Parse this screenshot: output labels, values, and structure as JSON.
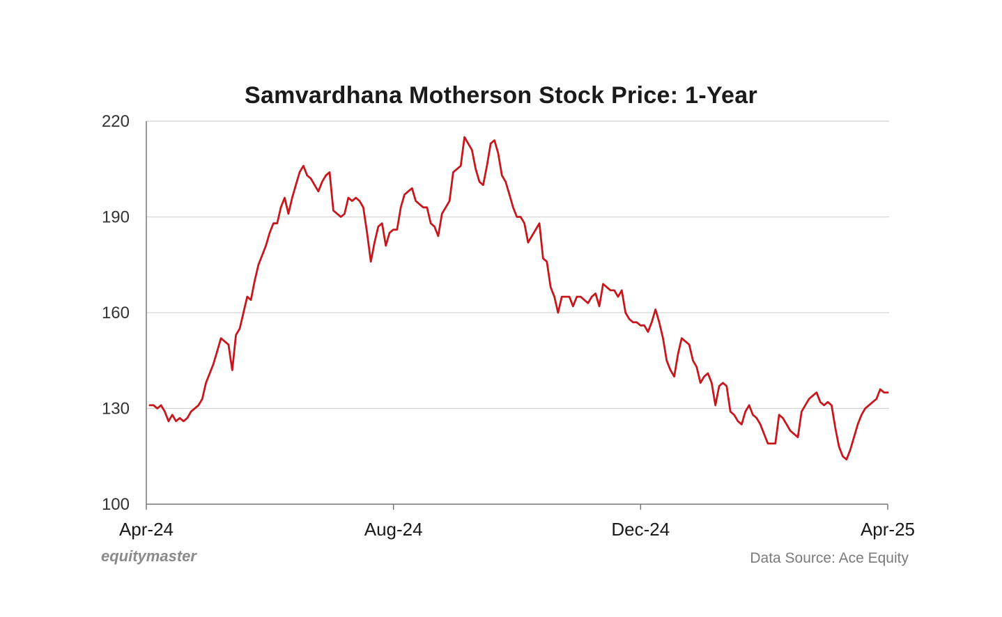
{
  "chart_data": {
    "type": "line",
    "title": "Samvardhana Motherson Stock Price: 1-Year",
    "xlabel": "",
    "ylabel": "",
    "ylim": [
      100,
      220
    ],
    "yticks": [
      100,
      130,
      160,
      190,
      220
    ],
    "xticks": [
      "Apr-24",
      "Aug-24",
      "Dec-24",
      "Apr-25"
    ],
    "grid": true,
    "line_color": "#c8161d",
    "series": [
      {
        "values": [
          131,
          131,
          130,
          131,
          129,
          126,
          128,
          126,
          127,
          126,
          127,
          129,
          130,
          131,
          133,
          138,
          141,
          144,
          148,
          152,
          151,
          150,
          142,
          153,
          155,
          160,
          165,
          164,
          170,
          175,
          178,
          181,
          185,
          188,
          188,
          193,
          196,
          191,
          196,
          200,
          204,
          206,
          203,
          202,
          200,
          198,
          201,
          203,
          204,
          192,
          191,
          190,
          191,
          196,
          195,
          196,
          195,
          193,
          185,
          176,
          182,
          187,
          188,
          181,
          185,
          186,
          186,
          193,
          197,
          198,
          199,
          195,
          194,
          193,
          193,
          188,
          187,
          184,
          191,
          193,
          195,
          204,
          205,
          206,
          215,
          213,
          211,
          205,
          201,
          200,
          206,
          213,
          214,
          210,
          203,
          201,
          197,
          193,
          190,
          190,
          188,
          182,
          184,
          186,
          188,
          177,
          176,
          168,
          165,
          160,
          165,
          165,
          165,
          162,
          165,
          165,
          164,
          163,
          165,
          166,
          162,
          169,
          168,
          167,
          167,
          165,
          167,
          160,
          158,
          157,
          157,
          156,
          156,
          154,
          157,
          161,
          157,
          152,
          145,
          142,
          140,
          147,
          152,
          151,
          150,
          145,
          143,
          138,
          140,
          141,
          138,
          131,
          137,
          138,
          137,
          129,
          128,
          126,
          125,
          129,
          131,
          128,
          127,
          125,
          122,
          119,
          119,
          119,
          128,
          127,
          125,
          123,
          122,
          121,
          129,
          131,
          133,
          134,
          135,
          132,
          131,
          132,
          131,
          124,
          118,
          115,
          114,
          117,
          121,
          125,
          128,
          130,
          131,
          132,
          133,
          136,
          135,
          135
        ]
      }
    ]
  },
  "brand": "equitymaster",
  "source": "Data Source: Ace Equity"
}
